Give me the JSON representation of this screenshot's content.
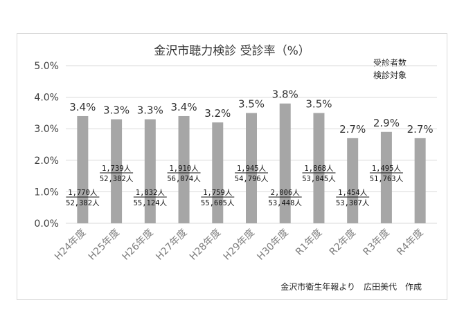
{
  "chart_data": {
    "type": "bar",
    "title": "金沢市聴力検診 受診率（%）",
    "categories": [
      "H24年度",
      "H25年度",
      "H26年度",
      "H27年度",
      "H28年度",
      "H29年度",
      "H30年度",
      "R1年度",
      "R2年度",
      "R3年度",
      "R4年度"
    ],
    "values": [
      3.4,
      3.3,
      3.3,
      3.4,
      3.2,
      3.5,
      3.8,
      3.5,
      2.7,
      2.9,
      2.7
    ],
    "value_labels": [
      "3.4%",
      "3.3%",
      "3.3%",
      "3.4%",
      "3.2%",
      "3.5%",
      "3.8%",
      "3.5%",
      "2.7%",
      "2.9%",
      "2.7%"
    ],
    "y_ticks": [
      {
        "value": 0,
        "label": "0.0%"
      },
      {
        "value": 1,
        "label": "1.0%"
      },
      {
        "value": 2,
        "label": "2.0%"
      },
      {
        "value": 3,
        "label": "3.0%"
      },
      {
        "value": 4,
        "label": "4.0%"
      },
      {
        "value": 5,
        "label": "5.0%"
      }
    ],
    "ylim": [
      0,
      5
    ],
    "grid": true,
    "bar_color": "#a6a6a6",
    "legend": {
      "numerator": "受診者数",
      "denominator": "検診対象",
      "placement": "top-right"
    },
    "fraction_annotations": [
      {
        "category": "H24年度",
        "numerator": "1,770人",
        "denominator": "52,382人",
        "level": "low"
      },
      {
        "category": "H25年度",
        "numerator": "1,739人",
        "denominator": "52,382人",
        "level": "high"
      },
      {
        "category": "H26年度",
        "numerator": "1,832人",
        "denominator": "55,124人",
        "level": "low"
      },
      {
        "category": "H27年度",
        "numerator": "1,910人",
        "denominator": "56,074人",
        "level": "high"
      },
      {
        "category": "H28年度",
        "numerator": "1,759人",
        "denominator": "55,605人",
        "level": "low"
      },
      {
        "category": "H29年度",
        "numerator": "1,945人",
        "denominator": "54,796人",
        "level": "high"
      },
      {
        "category": "H30年度",
        "numerator": "2,006人",
        "denominator": "53,448人",
        "level": "low"
      },
      {
        "category": "R1年度",
        "numerator": "1,868人",
        "denominator": "53,045人",
        "level": "high"
      },
      {
        "category": "R2年度",
        "numerator": "1,454人",
        "denominator": "53,307人",
        "level": "low"
      },
      {
        "category": "R3年度",
        "numerator": "1,495人",
        "denominator": "51,763人",
        "level": "high"
      }
    ],
    "source": "金沢市衛生年報より　広田美代　作成"
  }
}
